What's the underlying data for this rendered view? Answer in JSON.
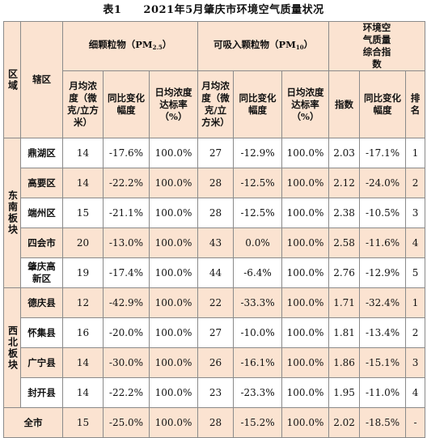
{
  "title": "表1　　2021年5月肇庆市环境空气质量状况",
  "headers": {
    "region": "区域",
    "district": "辖区",
    "pm25_group": "细颗粒物（PM",
    "pm25_sub": "2.5",
    "pm10_group": "可吸入颗粒物（PM",
    "pm10_sub": "10",
    "group_close": "）",
    "aq_group": "环境空气质量综合指数",
    "pm25_conc": "月均浓度（微克/立方米）",
    "pm25_yoy": "同比变化幅度",
    "pm25_rate": "日均浓度达标率（%）",
    "pm10_conc": "月均浓度（微克/立方米）",
    "pm10_yoy": "同比变化幅度",
    "pm10_rate": "日均浓度达标率（%）",
    "index": "指数",
    "index_yoy": "同比变化幅度",
    "rank": "排名"
  },
  "groups": [
    {
      "region": "东南板块",
      "rows": [
        {
          "district": "鼎湖区",
          "pm25": "14",
          "pm25_yoy": "-17.6%",
          "pm25_rate": "100.0%",
          "pm10": "27",
          "pm10_yoy": "-12.9%",
          "pm10_rate": "100.0%",
          "index": "2.03",
          "index_yoy": "-17.1%",
          "rank": "1"
        },
        {
          "district": "高要区",
          "pm25": "14",
          "pm25_yoy": "-22.2%",
          "pm25_rate": "100.0%",
          "pm10": "28",
          "pm10_yoy": "-12.5%",
          "pm10_rate": "100.0%",
          "index": "2.12",
          "index_yoy": "-24.0%",
          "rank": "2"
        },
        {
          "district": "端州区",
          "pm25": "15",
          "pm25_yoy": "-21.1%",
          "pm25_rate": "100.0%",
          "pm10": "28",
          "pm10_yoy": "-12.5%",
          "pm10_rate": "100.0%",
          "index": "2.38",
          "index_yoy": "-10.5%",
          "rank": "3"
        },
        {
          "district": "四会市",
          "pm25": "20",
          "pm25_yoy": "-13.0%",
          "pm25_rate": "100.0%",
          "pm10": "43",
          "pm10_yoy": "0.0%",
          "pm10_rate": "100.0%",
          "index": "2.58",
          "index_yoy": "-11.6%",
          "rank": "4"
        },
        {
          "district": "肇庆高新区",
          "pm25": "19",
          "pm25_yoy": "-17.4%",
          "pm25_rate": "100.0%",
          "pm10": "44",
          "pm10_yoy": "-6.4%",
          "pm10_rate": "100.0%",
          "index": "2.76",
          "index_yoy": "-12.9%",
          "rank": "5"
        }
      ]
    },
    {
      "region": "西北板块",
      "rows": [
        {
          "district": "德庆县",
          "pm25": "12",
          "pm25_yoy": "-42.9%",
          "pm25_rate": "100.0%",
          "pm10": "22",
          "pm10_yoy": "-33.3%",
          "pm10_rate": "100.0%",
          "index": "1.71",
          "index_yoy": "-32.4%",
          "rank": "1"
        },
        {
          "district": "怀集县",
          "pm25": "16",
          "pm25_yoy": "-20.0%",
          "pm25_rate": "100.0%",
          "pm10": "27",
          "pm10_yoy": "-10.0%",
          "pm10_rate": "100.0%",
          "index": "1.81",
          "index_yoy": "-13.4%",
          "rank": "2"
        },
        {
          "district": "广宁县",
          "pm25": "14",
          "pm25_yoy": "-30.0%",
          "pm25_rate": "100.0%",
          "pm10": "26",
          "pm10_yoy": "-16.1%",
          "pm10_rate": "100.0%",
          "index": "1.86",
          "index_yoy": "-15.1%",
          "rank": "3"
        },
        {
          "district": "封开县",
          "pm25": "14",
          "pm25_yoy": "-22.2%",
          "pm25_rate": "100.0%",
          "pm10": "23",
          "pm10_yoy": "-23.3%",
          "pm10_rate": "100.0%",
          "index": "1.95",
          "index_yoy": "-11.0%",
          "rank": "4"
        }
      ]
    }
  ],
  "total": {
    "label": "全市",
    "pm25": "15",
    "pm25_yoy": "-25.0%",
    "pm25_rate": "100.0%",
    "pm10": "28",
    "pm10_yoy": "-15.2%",
    "pm10_rate": "100.0%",
    "index": "2.02",
    "index_yoy": "-18.5%",
    "rank": "-"
  },
  "colors": {
    "header_bg": "#fbe3d1",
    "stripe_bg": "#fbe3d1",
    "border": "#8a8a8a"
  }
}
